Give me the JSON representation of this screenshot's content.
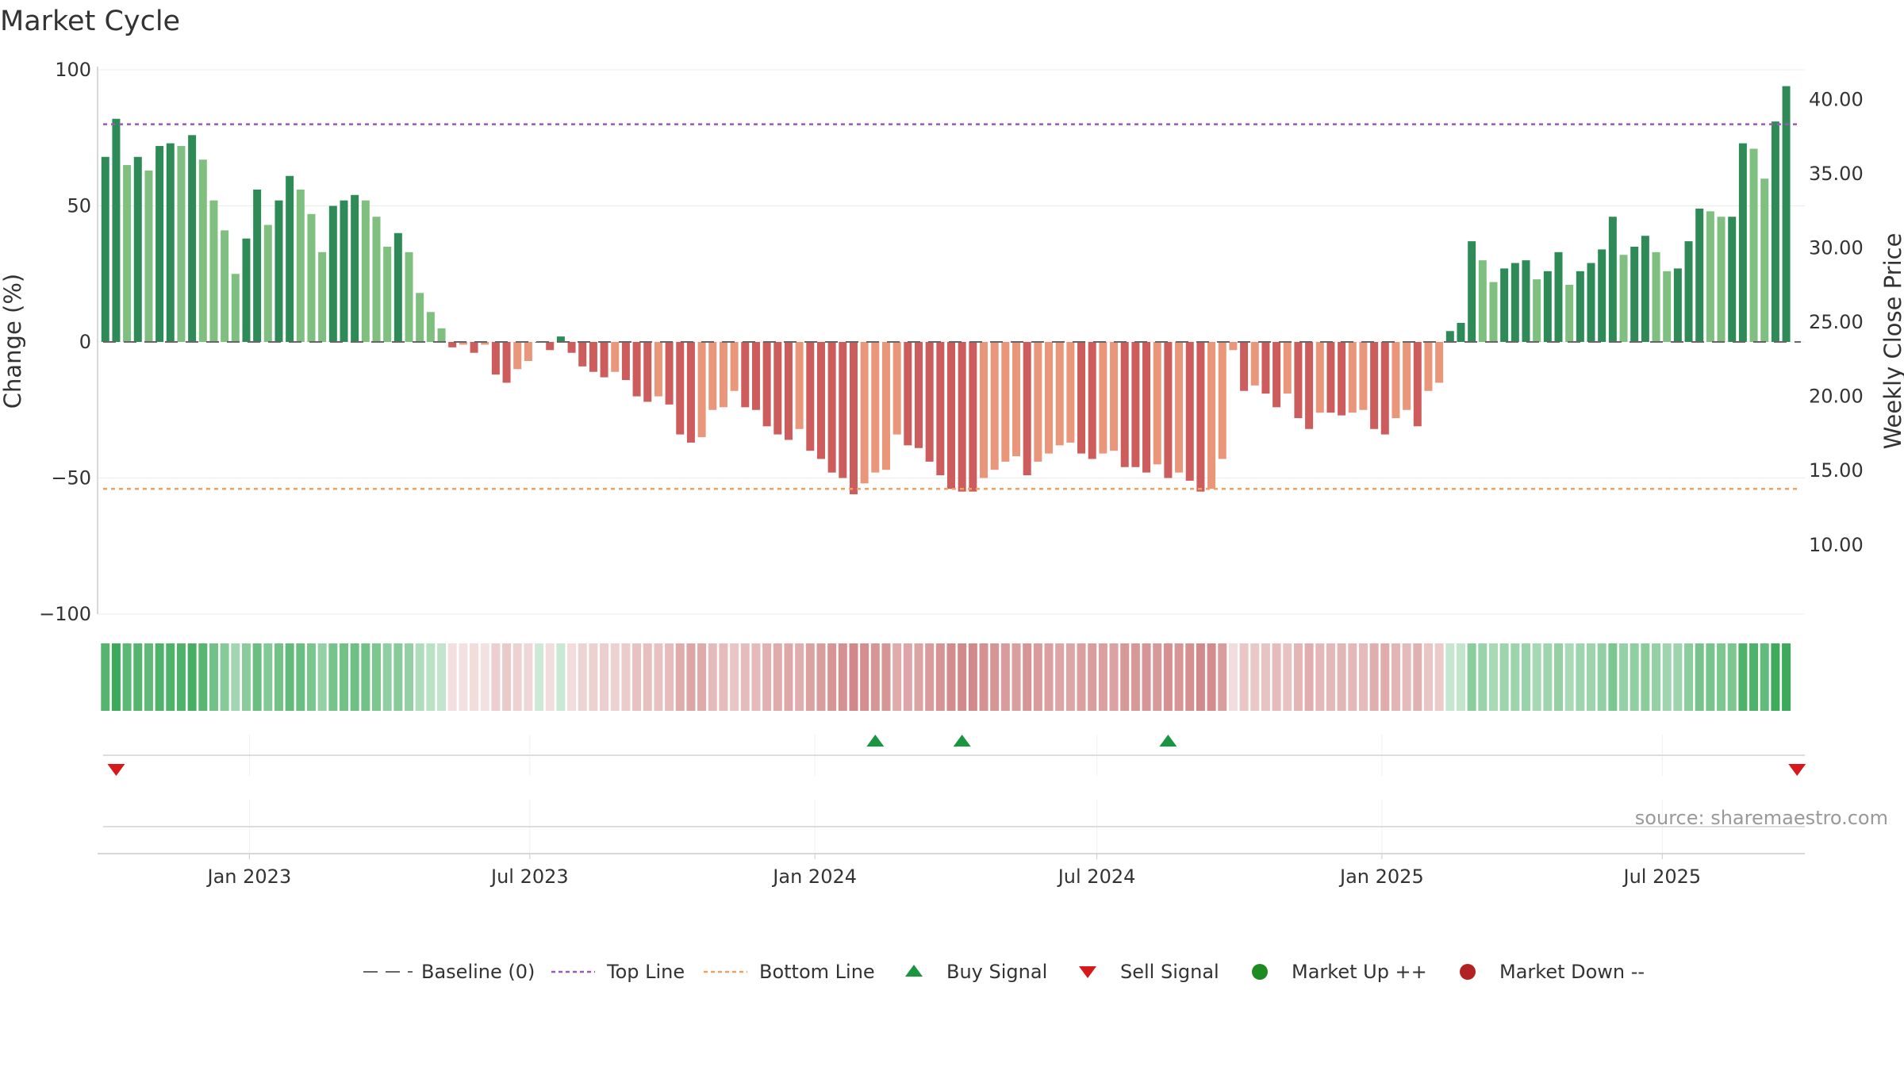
{
  "chart_data": {
    "type": "bar",
    "title": "Market Cycle",
    "ylabel": "Change (%)",
    "y2label": "Weekly Close Price",
    "ylim": [
      -100,
      100
    ],
    "y2lim": [
      5.34,
      42
    ],
    "yticks": [
      100,
      50,
      0,
      -50,
      -100
    ],
    "ytick_labels": [
      "100",
      "50",
      "0",
      "−50",
      "−100"
    ],
    "y2ticks": [
      40,
      35,
      30,
      25,
      20,
      15,
      10
    ],
    "y2tick_labels": [
      "40.00",
      "35.00",
      "30.00",
      "25.00",
      "20.00",
      "15.00",
      "10.00"
    ],
    "x_start": "2022-09-25",
    "x_end": "2025-10-01",
    "xticks": [
      "2023-01-01",
      "2023-07-01",
      "2024-01-01",
      "2024-07-01",
      "2025-01-01",
      "2025-07-01"
    ],
    "xtick_labels": [
      "Jan 2023",
      "Jul 2023",
      "Jan 2024",
      "Jul 2024",
      "Jan 2025",
      "Jul 2025"
    ],
    "first_week": "2022-09-30",
    "series": [
      {
        "values": [
          68,
          82,
          65,
          68,
          63,
          72,
          73,
          72,
          76,
          67,
          52,
          41,
          25,
          38,
          56,
          43,
          52,
          61,
          56,
          47,
          33,
          50,
          52,
          54,
          52,
          46,
          35,
          40,
          33,
          18,
          11,
          5,
          -2,
          -1,
          -4,
          -1,
          -12,
          -15,
          -10,
          -7,
          0,
          -3,
          2,
          -4,
          -9,
          -11,
          -13,
          -11,
          -14,
          -20,
          -22,
          -20,
          -23,
          -34,
          -37,
          -35,
          -25,
          -24,
          -18,
          -24,
          -25,
          -31,
          -34,
          -36,
          -32,
          -40,
          -43,
          -48,
          -50,
          -56,
          -52,
          -48,
          -47,
          -34,
          -38,
          -39,
          -44,
          -49,
          -54,
          -55,
          -55,
          -50,
          -47,
          -44,
          -42,
          -49,
          -44,
          -41,
          -38,
          -37,
          -41,
          -43,
          -41,
          -40,
          -46,
          -46,
          -48,
          -45,
          -50,
          -48,
          -51,
          -55,
          -54,
          -43,
          -3,
          -18,
          -16,
          -19,
          -24,
          -19,
          -28,
          -32,
          -26,
          -26,
          -27,
          -26,
          -25,
          -32,
          -34,
          -28,
          -25,
          -31,
          -18,
          -15,
          4,
          7,
          37,
          30,
          22,
          27,
          29,
          30,
          23,
          26,
          33,
          21,
          26,
          29,
          34,
          46,
          32,
          35,
          39,
          33,
          26,
          27,
          37,
          49,
          48,
          46,
          46,
          73,
          71,
          60,
          81,
          94
        ]
      },
      {
        "name": "Baseline (0)",
        "values": [
          0
        ]
      },
      {
        "name": "Top Line",
        "values": [
          80
        ]
      },
      {
        "name": "Bottom Line",
        "values": [
          -54
        ]
      },
      {
        "name": "Buy Signal",
        "x": [
          "2024-02-09",
          "2024-04-05",
          "2024-08-16"
        ]
      },
      {
        "name": "Sell Signal",
        "x": [
          "2022-10-07",
          "2025-09-26"
        ]
      },
      {
        "name": "Market Up ++",
        "x": []
      },
      {
        "name": "Market Down --",
        "x": []
      }
    ],
    "grid": true,
    "legend_position": "bottom"
  },
  "source": "source: sharemaestro.com",
  "colors": {
    "bar_up_dark": "#2e8b57",
    "bar_up_light": "#7fbf7f",
    "bar_down_dark": "#cd5c5c",
    "bar_down_light": "#e9967a",
    "top_line": "#9b59b6",
    "bottom_line": "#f0a060",
    "baseline": "#666666",
    "buy": "#1a9641",
    "sell": "#d7191c",
    "market_up": "#1e8b22",
    "market_down": "#b22222"
  }
}
